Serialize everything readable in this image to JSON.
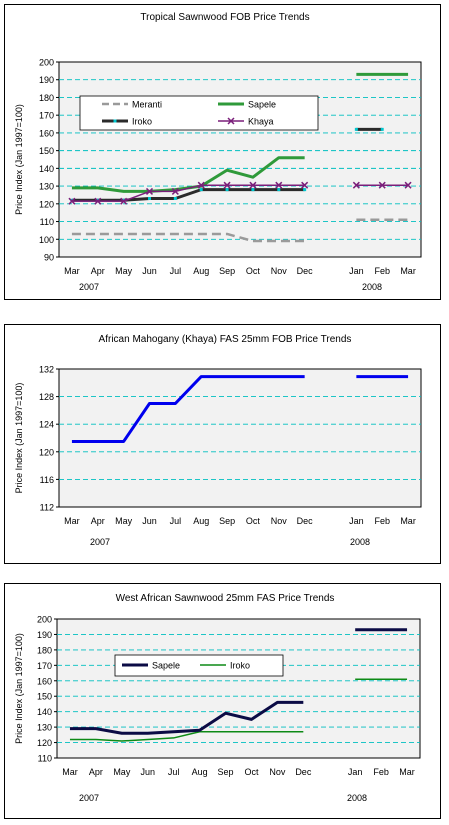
{
  "colors": {
    "meranti": "#9a9a9a",
    "sapele": "#2f9a3a",
    "iroko": "#2b2b2b",
    "khaya": "#7a1f7a",
    "khaya_blue": "#0000ee",
    "sapele_navy": "#0b0b45",
    "iroko_green": "#0d8a16",
    "grid": "#00bfc0",
    "plot_bg": "#f2f2f2"
  },
  "chart_data": [
    {
      "type": "line",
      "title": "Tropical Sawnwood FOB Price Trends",
      "xlabel": "",
      "ylabel": "Price Index (Jan 1997=100)",
      "ylim": [
        90,
        200
      ],
      "yticks": [
        "90",
        "100",
        "110",
        "120",
        "130",
        "140",
        "150",
        "160",
        "170",
        "180",
        "190",
        "200"
      ],
      "x": [
        "Mar",
        "Apr",
        "May",
        "Jun",
        "Jul",
        "Aug",
        "Sep",
        "Oct",
        "Nov",
        "Dec",
        "",
        "Jan",
        "Feb",
        "Mar"
      ],
      "year_labels": [
        "2007",
        "2008"
      ],
      "grid": true,
      "legend": "upper-middle",
      "series": [
        {
          "name": "Meranti",
          "values": [
            103,
            103,
            103,
            103,
            103,
            103,
            103,
            99,
            99,
            99,
            null,
            111,
            111,
            111
          ]
        },
        {
          "name": "Sapele",
          "values": [
            129,
            129,
            127,
            127,
            128,
            130,
            139,
            135,
            146,
            146,
            null,
            193,
            193,
            193
          ]
        },
        {
          "name": "Iroko",
          "values": [
            122,
            122,
            122,
            123,
            123,
            128,
            128,
            128,
            128,
            128,
            null,
            162,
            162,
            null
          ]
        },
        {
          "name": "Khaya",
          "values": [
            121.5,
            121.5,
            121.5,
            127,
            127,
            130.5,
            130.5,
            130.5,
            130.5,
            130.5,
            null,
            130.5,
            130.5,
            130.5
          ]
        }
      ]
    },
    {
      "type": "line",
      "title": "African Mahogany (Khaya) FAS 25mm FOB Price Trends",
      "xlabel": "",
      "ylabel": "Price Index (Jan 1997=100)",
      "ylim": [
        112,
        132
      ],
      "yticks": [
        "112",
        "116",
        "120",
        "124",
        "128",
        "132"
      ],
      "x": [
        "Mar",
        "Apr",
        "May",
        "Jun",
        "Jul",
        "Aug",
        "Sep",
        "Oct",
        "Nov",
        "Dec",
        "",
        "Jan",
        "Feb",
        "Mar"
      ],
      "year_labels": [
        "2007",
        "2008"
      ],
      "grid": true,
      "series": [
        {
          "name": "",
          "values": [
            121.5,
            121.5,
            121.5,
            127,
            127,
            130.9,
            130.9,
            130.9,
            130.9,
            130.9,
            null,
            130.9,
            130.9,
            130.9
          ]
        }
      ]
    },
    {
      "type": "line",
      "title": "West African Sawnwood 25mm FAS Price Trends",
      "xlabel": "",
      "ylabel": "Price Index (Jan 1997=100)",
      "ylim": [
        110,
        200
      ],
      "yticks": [
        "110",
        "120",
        "130",
        "140",
        "150",
        "160",
        "170",
        "180",
        "190",
        "200"
      ],
      "x": [
        "Mar",
        "Apr",
        "May",
        "Jun",
        "Jul",
        "Aug",
        "Sep",
        "Oct",
        "Nov",
        "Dec",
        "",
        "Jan",
        "Feb",
        "Mar"
      ],
      "year_labels": [
        "2007",
        "2008"
      ],
      "grid": true,
      "legend": "upper-middle",
      "series": [
        {
          "name": "Sapele",
          "values": [
            129,
            129,
            126,
            126,
            127,
            128,
            139,
            135,
            146,
            146,
            null,
            193,
            193,
            193
          ]
        },
        {
          "name": "Iroko",
          "values": [
            122,
            122,
            121,
            122,
            123,
            127,
            127,
            127,
            127,
            127,
            null,
            161,
            161,
            161
          ]
        }
      ]
    }
  ]
}
